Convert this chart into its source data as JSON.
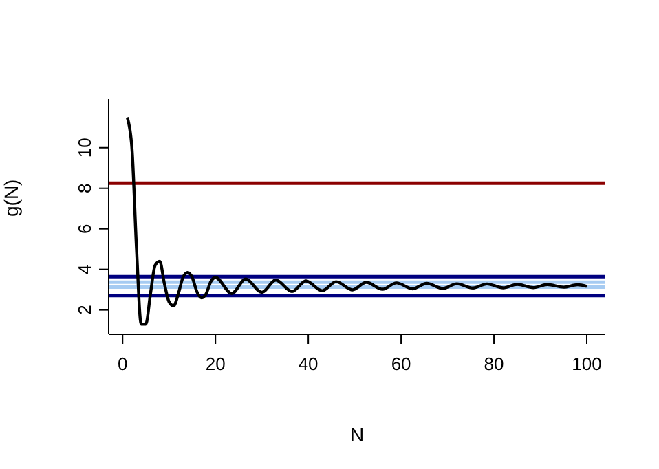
{
  "chart_data": {
    "type": "line",
    "xlabel": "N",
    "ylabel": "g(N)",
    "x": [
      1,
      2,
      3,
      4,
      5,
      6,
      7,
      8,
      9,
      10,
      11,
      12,
      13,
      14,
      15,
      16,
      17,
      18,
      19,
      20,
      23.5,
      26.5,
      30,
      33,
      36.5,
      39.5,
      43,
      46,
      49.5,
      52.5,
      56,
      59,
      62.5,
      65.5,
      69,
      72,
      75.5,
      78.5,
      82,
      85,
      88.5,
      91.5,
      95,
      98,
      100
    ],
    "series": [
      {
        "color": "#000000",
        "values": [
          11.5,
          10.0,
          5.0,
          1.3,
          1.3,
          2.8,
          4.2,
          4.4,
          3.3,
          2.4,
          2.2,
          2.8,
          3.6,
          3.85,
          3.6,
          2.9,
          2.6,
          2.8,
          3.4,
          3.6,
          2.81,
          3.52,
          2.87,
          3.47,
          2.91,
          3.43,
          2.95,
          3.39,
          2.99,
          3.36,
          3.02,
          3.33,
          3.04,
          3.31,
          3.06,
          3.29,
          3.08,
          3.28,
          3.09,
          3.26,
          3.1,
          3.25,
          3.12,
          3.24,
          3.16
        ]
      }
    ],
    "xlim": [
      -3,
      104
    ],
    "ylim": [
      0.8,
      12.4
    ],
    "xticks": [
      0,
      20,
      40,
      60,
      80,
      100
    ],
    "yticks": [
      2,
      4,
      6,
      8,
      10
    ],
    "grid": false,
    "marker": "none",
    "line_style": "solid",
    "ref_lines": [
      {
        "axis": "y",
        "value": 8.25,
        "color": "#8b0000"
      },
      {
        "axis": "y",
        "value": 3.64,
        "color": "#000080"
      },
      {
        "axis": "y",
        "value": 2.71,
        "color": "#000080"
      },
      {
        "axis": "y",
        "value": 3.37,
        "color": "#a6cbf2"
      },
      {
        "axis": "y",
        "value": 3.12,
        "color": "#a6cbf2"
      }
    ]
  }
}
